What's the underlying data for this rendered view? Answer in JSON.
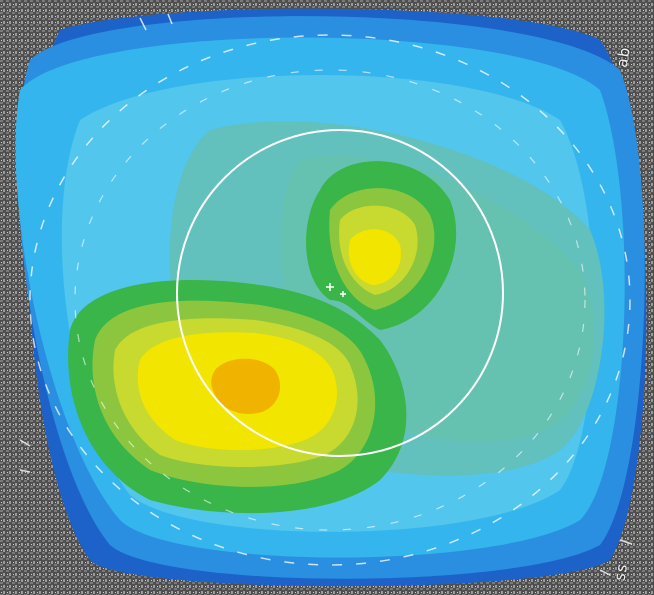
{
  "image": {
    "description_kind": "corneal topography color map",
    "colors": {
      "background_gray": "#5a5a5a",
      "dark_blue": "#1c62c8",
      "blue": "#2a8fe0",
      "light_blue": "#35b5ee",
      "sky_blue": "#52c6ec",
      "cyan_green": "#62c0bd",
      "aqua": "#66c2b0",
      "green": "#39b54a",
      "light_green": "#8cc63f",
      "yellow_green": "#c8d92f",
      "yellow": "#f2e500",
      "orange_yellow": "#f0b400",
      "overlay_white": "#ffffff"
    },
    "corner_labels": {
      "top_right": "ab",
      "bottom_right": "ss"
    }
  }
}
